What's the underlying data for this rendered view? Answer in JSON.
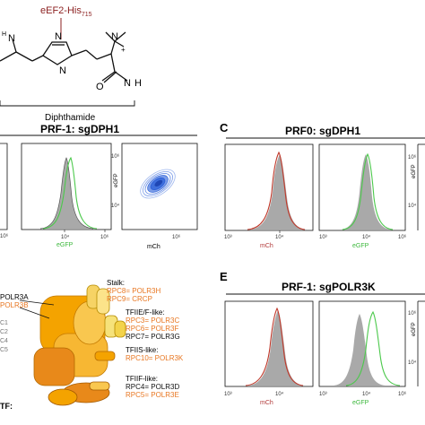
{
  "chemical": {
    "label_main": "eEF2-His",
    "label_sub": "715",
    "name": "Diphthamide",
    "atoms": {
      "n_top": "N",
      "h_top": "H",
      "n_ring": "N",
      "n_plus": "N",
      "plus": "+",
      "n_amide": "N",
      "h_amide": "H",
      "o": "O"
    }
  },
  "panel_c_letter": "C",
  "panel_e_letter": "E",
  "header_prf1_sgdph1": "PRF-1: sgDPH1",
  "header_prf0_sgdph1": "PRF0: sgDPH1",
  "header_prf1_sgpolr3k": "PRF-1: sgPOLR3K",
  "axes": {
    "mch": "mCh",
    "egfp": "eGFP",
    "t10_3": "10³",
    "t10_4": "10⁴",
    "t10_5": "10⁵",
    "t10_6": "10⁶"
  },
  "polr3": {
    "stalk_title": "Stalk:",
    "rpc8": "RPC8= POLR3H",
    "rpc9": "RPC9= CRCP",
    "tfiie_title": "TFIIE/F-like:",
    "rpc3": "RPC3= POLR3C",
    "rpc6": "RPC6= POLR3F",
    "rpc7": "RPC7= POLR3G",
    "tfiis_title": "TFIIS-like:",
    "rpc10": "RPC10= POLR3K",
    "tfiif_title": "TFIIF-like:",
    "rpc4": "RPC4= POLR3D",
    "rpc5": "RPC5= POLR3E",
    "polr3a": "POLR3A",
    "polr3b": "POLR3B",
    "left_letters": [
      "C1",
      "C2",
      "C4",
      "C5"
    ],
    "left_tf": "TF:"
  },
  "colors": {
    "orange": "#e87722",
    "green": "#4cc94c",
    "red": "#c0392b",
    "grey_fill": "#a9a9a9",
    "blue": "#2b5fd9"
  }
}
